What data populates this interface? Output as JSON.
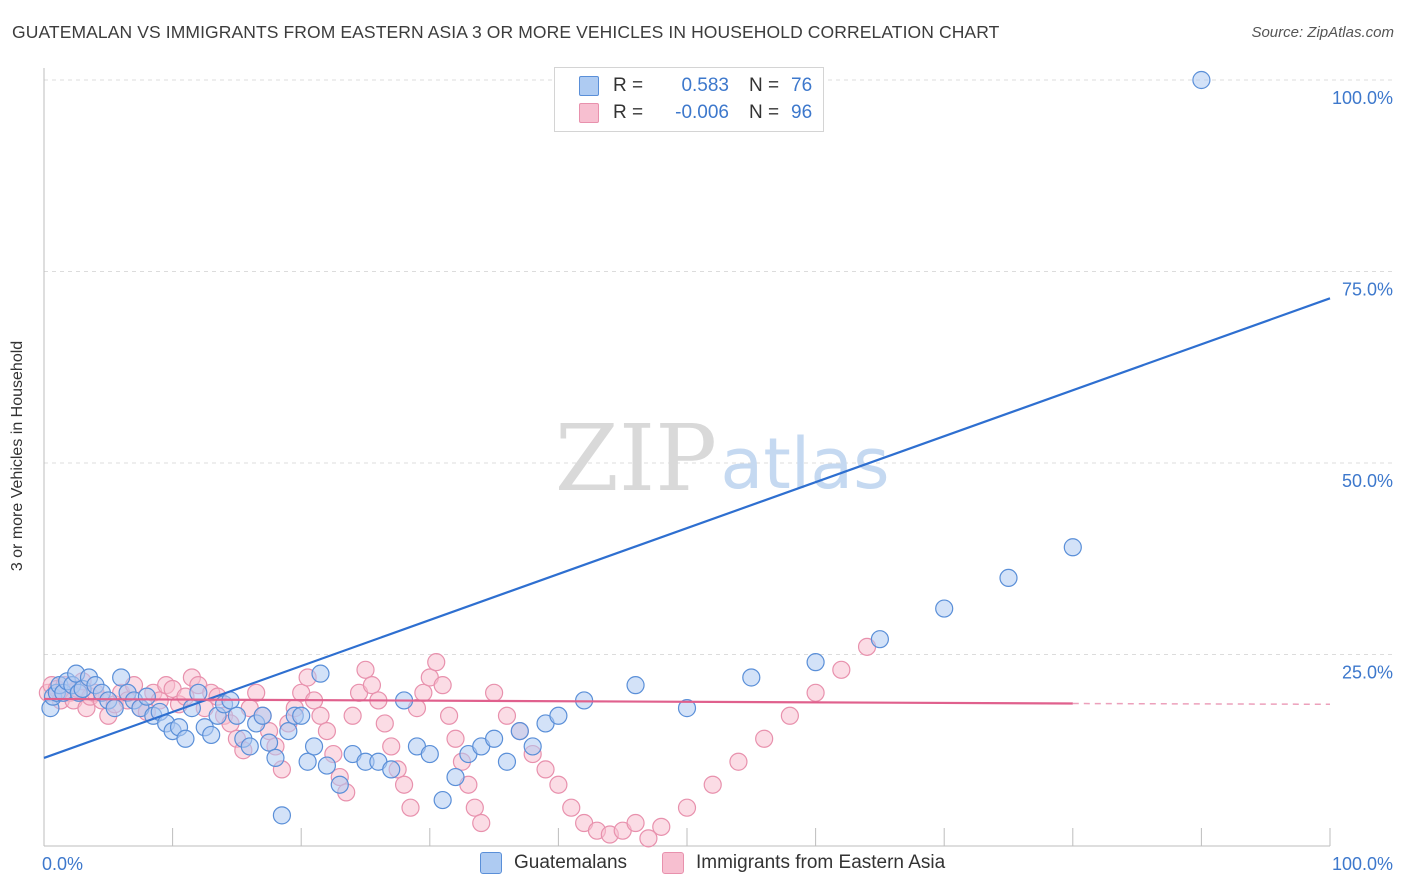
{
  "header": {
    "title": "GUATEMALAN VS IMMIGRANTS FROM EASTERN ASIA 3 OR MORE VEHICLES IN HOUSEHOLD CORRELATION CHART",
    "source": "Source: ZipAtlas.com"
  },
  "watermark": {
    "zip": "ZIP",
    "atlas": "atlas"
  },
  "legend": {
    "rows": [
      {
        "swatch_color": "#aecbf2",
        "r_label": "R =",
        "r_value": "0.583",
        "n_label": "N =",
        "n_value": "76"
      },
      {
        "swatch_color": "#f7bfd0",
        "r_label": "R =",
        "r_value": "-0.006",
        "n_label": "N =",
        "n_value": "96"
      }
    ]
  },
  "bottom_legend": [
    {
      "label": "Guatemalans",
      "swatch_color": "#aecbf2"
    },
    {
      "label": "Immigrants from Eastern Asia",
      "swatch_color": "#f7bfd0"
    }
  ],
  "colors": {
    "blue_line": "#2e6fd0",
    "pink_line": "#e0608d",
    "blue_fill": "#aecbf2",
    "blue_stroke": "#5a8fd8",
    "pink_fill": "#f7bfd0",
    "pink_stroke": "#e891ad",
    "tick_text": "#3d78cc",
    "grid": "#dcdcdc"
  },
  "chart_data": {
    "type": "scatter",
    "title": "GUATEMALAN VS IMMIGRANTS FROM EASTERN ASIA 3 OR MORE VEHICLES IN HOUSEHOLD CORRELATION CHART",
    "xlabel": "",
    "ylabel": "3 or more Vehicles in Household",
    "xlim": [
      0,
      100
    ],
    "ylim": [
      0,
      100
    ],
    "x_tick_labels": [
      {
        "value": 0,
        "label": "0.0%"
      },
      {
        "value": 100,
        "label": "100.0%"
      }
    ],
    "y_tick_labels": [
      {
        "value": 25,
        "label": "25.0%"
      },
      {
        "value": 50,
        "label": "50.0%"
      },
      {
        "value": 75,
        "label": "75.0%"
      },
      {
        "value": 100,
        "label": "100.0%"
      }
    ],
    "x_minor_ticks": [
      0,
      10,
      20,
      30,
      40,
      50,
      60,
      70,
      80,
      90,
      100
    ],
    "series": [
      {
        "name": "Guatemalans",
        "r": 0.583,
        "n": 76,
        "trend": {
          "x": [
            0,
            100
          ],
          "y": [
            11.5,
            71.5
          ],
          "style": "solid"
        },
        "points": [
          [
            0.5,
            18
          ],
          [
            0.7,
            19.5
          ],
          [
            1,
            20
          ],
          [
            1.2,
            21
          ],
          [
            1.5,
            20
          ],
          [
            1.8,
            21.5
          ],
          [
            2.2,
            21
          ],
          [
            2.5,
            22.5
          ],
          [
            2.7,
            20
          ],
          [
            3,
            20.5
          ],
          [
            3.5,
            22
          ],
          [
            4,
            21
          ],
          [
            4.5,
            20
          ],
          [
            5,
            19
          ],
          [
            5.5,
            18
          ],
          [
            6,
            22
          ],
          [
            6.5,
            20
          ],
          [
            7,
            19
          ],
          [
            7.5,
            18
          ],
          [
            8,
            19.5
          ],
          [
            8.5,
            17
          ],
          [
            9,
            17.5
          ],
          [
            9.5,
            16
          ],
          [
            10,
            15
          ],
          [
            10.5,
            15.5
          ],
          [
            11,
            14
          ],
          [
            11.5,
            18
          ],
          [
            12,
            20
          ],
          [
            12.5,
            15.5
          ],
          [
            13,
            14.5
          ],
          [
            13.5,
            17
          ],
          [
            14,
            18.5
          ],
          [
            14.5,
            19
          ],
          [
            15,
            17
          ],
          [
            15.5,
            14
          ],
          [
            16,
            13
          ],
          [
            16.5,
            16
          ],
          [
            17,
            17
          ],
          [
            17.5,
            13.5
          ],
          [
            18,
            11.5
          ],
          [
            18.5,
            4
          ],
          [
            19,
            15
          ],
          [
            19.5,
            17
          ],
          [
            20,
            17
          ],
          [
            20.5,
            11
          ],
          [
            21,
            13
          ],
          [
            21.5,
            22.5
          ],
          [
            22,
            10.5
          ],
          [
            23,
            8
          ],
          [
            24,
            12
          ],
          [
            25,
            11
          ],
          [
            26,
            11
          ],
          [
            27,
            10
          ],
          [
            28,
            19
          ],
          [
            29,
            13
          ],
          [
            30,
            12
          ],
          [
            31,
            6
          ],
          [
            32,
            9
          ],
          [
            33,
            12
          ],
          [
            34,
            13
          ],
          [
            35,
            14
          ],
          [
            36,
            11
          ],
          [
            37,
            15
          ],
          [
            38,
            13
          ],
          [
            39,
            16
          ],
          [
            40,
            17
          ],
          [
            42,
            19
          ],
          [
            46,
            21
          ],
          [
            50,
            18
          ],
          [
            55,
            22
          ],
          [
            60,
            24
          ],
          [
            65,
            27
          ],
          [
            70,
            31
          ],
          [
            75,
            35
          ],
          [
            80,
            39
          ],
          [
            90,
            100
          ]
        ]
      },
      {
        "name": "Immigrants from Eastern Asia",
        "r": -0.006,
        "n": 96,
        "trend": {
          "x": [
            0,
            80
          ],
          "y": [
            19.2,
            18.6
          ],
          "style": "solid"
        },
        "trend_ext": {
          "x": [
            80,
            100
          ],
          "y": [
            18.6,
            18.5
          ],
          "style": "dashed"
        },
        "points": [
          [
            0.3,
            20
          ],
          [
            0.6,
            21
          ],
          [
            1,
            20.5
          ],
          [
            1.3,
            19
          ],
          [
            1.6,
            21
          ],
          [
            2,
            20
          ],
          [
            2.3,
            19
          ],
          [
            2.6,
            20.5
          ],
          [
            3,
            21.5
          ],
          [
            3.3,
            18
          ],
          [
            3.6,
            19.5
          ],
          [
            4,
            20
          ],
          [
            4.5,
            19
          ],
          [
            5,
            17
          ],
          [
            5.5,
            18.5
          ],
          [
            6,
            20
          ],
          [
            6.5,
            19
          ],
          [
            7,
            21
          ],
          [
            7.5,
            18
          ],
          [
            8,
            17.5
          ],
          [
            8.5,
            20
          ],
          [
            9,
            19
          ],
          [
            9.5,
            21
          ],
          [
            10,
            20.5
          ],
          [
            10.5,
            18.5
          ],
          [
            11,
            19.5
          ],
          [
            11.5,
            22
          ],
          [
            12,
            21
          ],
          [
            12.5,
            18
          ],
          [
            13,
            20
          ],
          [
            13.5,
            19.5
          ],
          [
            14,
            17
          ],
          [
            14.5,
            16
          ],
          [
            15,
            14
          ],
          [
            15.5,
            12.5
          ],
          [
            16,
            18
          ],
          [
            16.5,
            20
          ],
          [
            17,
            17
          ],
          [
            17.5,
            15
          ],
          [
            18,
            13
          ],
          [
            18.5,
            10
          ],
          [
            19,
            16
          ],
          [
            19.5,
            18
          ],
          [
            20,
            20
          ],
          [
            20.5,
            22
          ],
          [
            21,
            19
          ],
          [
            21.5,
            17
          ],
          [
            22,
            15
          ],
          [
            22.5,
            12
          ],
          [
            23,
            9
          ],
          [
            23.5,
            7
          ],
          [
            24,
            17
          ],
          [
            24.5,
            20
          ],
          [
            25,
            23
          ],
          [
            25.5,
            21
          ],
          [
            26,
            19
          ],
          [
            26.5,
            16
          ],
          [
            27,
            13
          ],
          [
            27.5,
            10
          ],
          [
            28,
            8
          ],
          [
            28.5,
            5
          ],
          [
            29,
            18
          ],
          [
            29.5,
            20
          ],
          [
            30,
            22
          ],
          [
            30.5,
            24
          ],
          [
            31,
            21
          ],
          [
            31.5,
            17
          ],
          [
            32,
            14
          ],
          [
            32.5,
            11
          ],
          [
            33,
            8
          ],
          [
            33.5,
            5
          ],
          [
            34,
            3
          ],
          [
            35,
            20
          ],
          [
            36,
            17
          ],
          [
            37,
            15
          ],
          [
            38,
            12
          ],
          [
            39,
            10
          ],
          [
            40,
            8
          ],
          [
            41,
            5
          ],
          [
            42,
            3
          ],
          [
            43,
            2
          ],
          [
            44,
            1.5
          ],
          [
            45,
            2
          ],
          [
            46,
            3
          ],
          [
            47,
            1
          ],
          [
            48,
            2.5
          ],
          [
            50,
            5
          ],
          [
            52,
            8
          ],
          [
            54,
            11
          ],
          [
            56,
            14
          ],
          [
            58,
            17
          ],
          [
            60,
            20
          ],
          [
            62,
            23
          ],
          [
            64,
            26
          ]
        ]
      }
    ]
  }
}
